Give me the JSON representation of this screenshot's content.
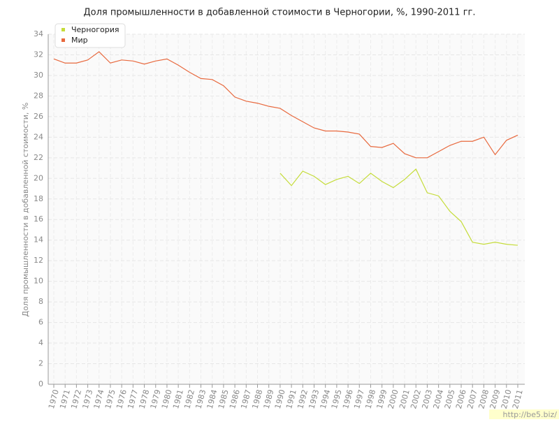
{
  "chart_data": {
    "type": "line",
    "title": "Доля промышленности в добавленной стоимости в Черногории, %, 1990-2011 гг.",
    "y_label": "Доля промышленности в добавленной стоимости, %",
    "watermark": "http://be5.biz/",
    "categories": [
      "1970",
      "1971",
      "1972",
      "1973",
      "1974",
      "1975",
      "1976",
      "1977",
      "1978",
      "1979",
      "1980",
      "1981",
      "1982",
      "1983",
      "1984",
      "1985",
      "1986",
      "1987",
      "1988",
      "1989",
      "1990",
      "1991",
      "1992",
      "1993",
      "1994",
      "1995",
      "1996",
      "1997",
      "1998",
      "1999",
      "2000",
      "2001",
      "2002",
      "2003",
      "2004",
      "2005",
      "2006",
      "2007",
      "2008",
      "2009",
      "2010",
      "2011"
    ],
    "series": [
      {
        "name": "Черногория",
        "color": "#c5dc3a",
        "values": [
          null,
          null,
          null,
          null,
          null,
          null,
          null,
          null,
          null,
          null,
          null,
          null,
          null,
          null,
          null,
          null,
          null,
          null,
          null,
          null,
          20.5,
          19.3,
          20.7,
          20.2,
          19.4,
          19.9,
          20.2,
          19.5,
          20.5,
          19.7,
          19.1,
          19.9,
          20.9,
          18.6,
          18.3,
          16.8,
          15.8,
          13.8,
          13.6,
          13.8,
          13.6,
          13.5
        ]
      },
      {
        "name": "Мир",
        "color": "#e8693e",
        "values": [
          31.6,
          31.2,
          31.2,
          31.5,
          32.3,
          31.2,
          31.5,
          31.4,
          31.1,
          31.4,
          31.6,
          31.0,
          30.3,
          29.7,
          29.6,
          29.0,
          27.9,
          27.5,
          27.3,
          27.0,
          26.8,
          26.1,
          25.5,
          24.9,
          24.6,
          24.6,
          24.5,
          24.3,
          23.1,
          23.0,
          23.4,
          22.4,
          22.0,
          22.0,
          22.6,
          23.2,
          23.6,
          23.6,
          24.0,
          22.3,
          23.7,
          24.2
        ]
      }
    ],
    "ylim": [
      0,
      34
    ],
    "yticks": [
      0,
      2,
      4,
      6,
      8,
      10,
      12,
      14,
      16,
      18,
      20,
      22,
      24,
      26,
      28,
      30,
      32,
      34
    ],
    "grid": true,
    "legend": "top-left"
  }
}
